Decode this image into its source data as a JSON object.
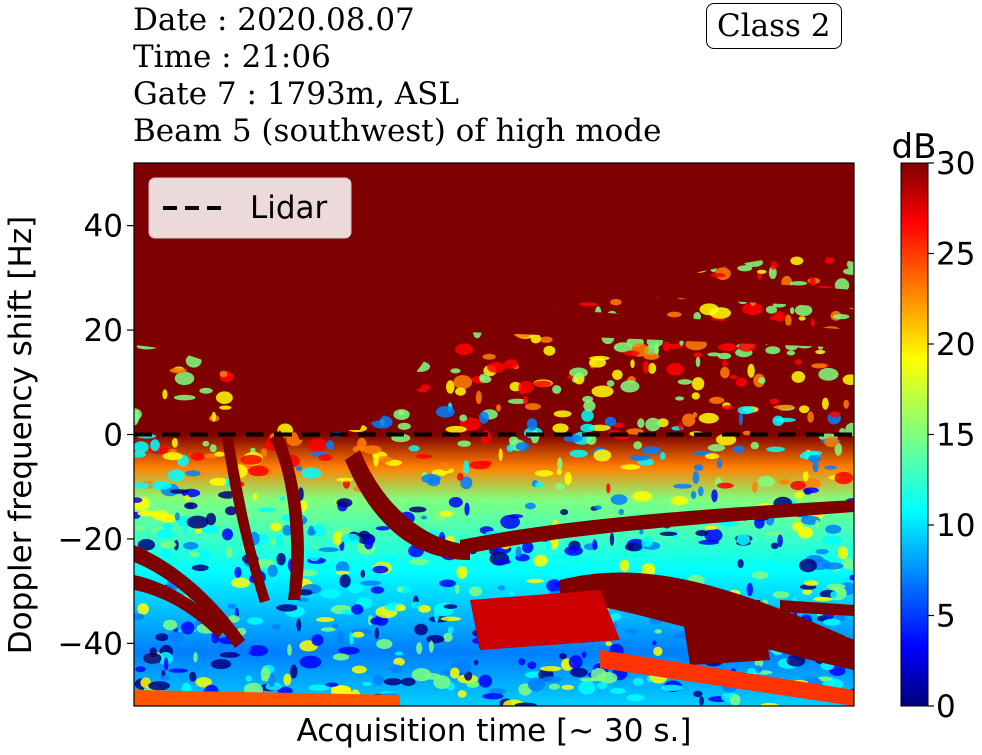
{
  "info": {
    "date": "Date : 2020.08.07",
    "time": "Time : 21:06",
    "gate": "Gate 7 : 1793m, ASL",
    "beam": "Beam 5 (southwest) of high mode"
  },
  "class_label": "Class 2",
  "chart_data": {
    "type": "heatmap",
    "xlabel": "Acquisition time [~ 30 s.]",
    "ylabel": "Doppler frequency shift [Hz]",
    "ylim": [
      -52,
      52
    ],
    "yticks": [
      -40,
      -20,
      0,
      20,
      40
    ],
    "ytick_labels": [
      "−40",
      "−20",
      "0",
      "20",
      "40"
    ],
    "xticks": [],
    "colorbar": {
      "label": "dB",
      "range": [
        0,
        30
      ],
      "ticks": [
        0,
        5,
        10,
        15,
        20,
        25,
        30
      ],
      "colormap": "jet"
    },
    "legend": {
      "entries": [
        "Lidar"
      ],
      "placement": "upper-left"
    },
    "lidar_line": {
      "y": 0,
      "style": "dashed",
      "color": "#000000"
    },
    "grid": false
  },
  "colors": {
    "jet": [
      "#00007f",
      "#0000ff",
      "#007fff",
      "#00ffff",
      "#7fff7f",
      "#ffff00",
      "#ff7f00",
      "#ff0000",
      "#7f0000"
    ]
  }
}
